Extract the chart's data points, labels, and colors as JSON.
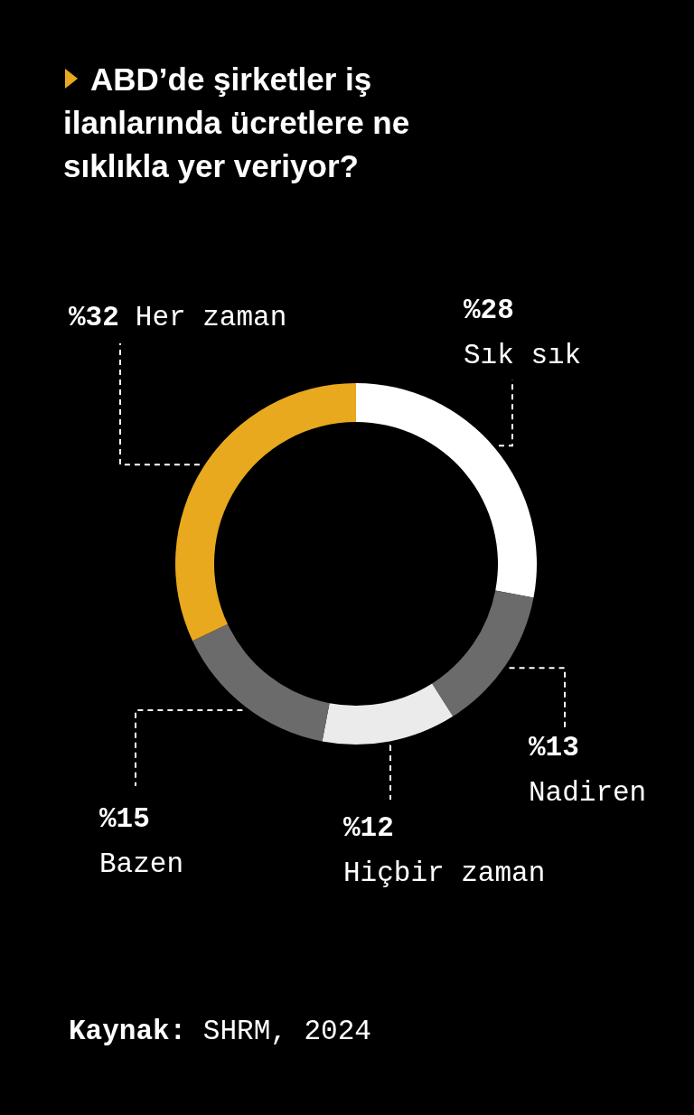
{
  "chart_data": {
    "type": "donut",
    "title": "ABD’de şirketler iş ilanlarında ücretlere ne sıklıkla yer veriyor?",
    "categories": [
      "Sık sık",
      "Nadiren",
      "Hiçbir zaman",
      "Bazen",
      "Her zaman"
    ],
    "values": [
      28,
      13,
      12,
      15,
      32
    ],
    "value_labels": [
      "%28",
      "%13",
      "%12",
      "%15",
      "%32"
    ],
    "colors": [
      "#ffffff",
      "#6b6b6b",
      "#ebebeb",
      "#6b6b6b",
      "#e8a91e"
    ],
    "annotations": [
      "Kaynak: SHRM, 2024"
    ]
  }
}
